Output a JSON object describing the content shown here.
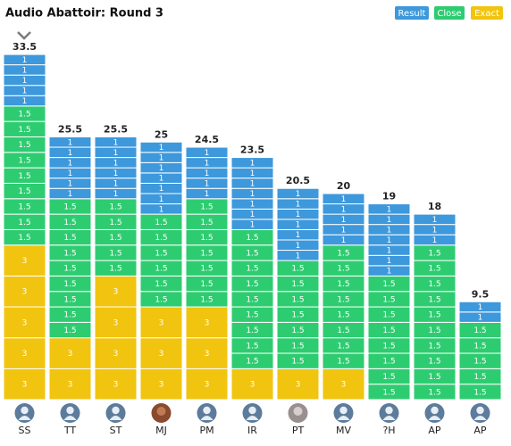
{
  "title": "Audio Abattoir: Round 3",
  "legend": {
    "result": {
      "label": "Result",
      "color": "#3d98dc"
    },
    "close": {
      "label": "Close",
      "color": "#2ecc71"
    },
    "exact": {
      "label": "Exact",
      "color": "#f1c40f"
    }
  },
  "columns": [
    {
      "name": "SS",
      "total": 33.5,
      "result": [
        1,
        1,
        1,
        1,
        1
      ],
      "close": [
        1.5,
        1.5,
        1.5,
        1.5,
        1.5,
        1.5,
        1.5,
        1.5,
        1.5
      ],
      "exact": [
        3,
        3,
        3,
        3,
        3
      ]
    },
    {
      "name": "TT",
      "total": 25.5,
      "result": [
        1,
        1,
        1,
        1,
        1,
        1
      ],
      "close": [
        1.5,
        1.5,
        1.5,
        1.5,
        1.5,
        1.5,
        1.5,
        1.5,
        1.5
      ],
      "exact": [
        3,
        3
      ]
    },
    {
      "name": "ST",
      "total": 25.5,
      "result": [
        1,
        1,
        1,
        1,
        1,
        1
      ],
      "close": [
        1.5,
        1.5,
        1.5,
        1.5,
        1.5
      ],
      "exact": [
        3,
        3,
        3,
        3
      ]
    },
    {
      "name": "MJ",
      "total": 25,
      "result": [
        1,
        1,
        1,
        1,
        1,
        1,
        1
      ],
      "close": [
        1.5,
        1.5,
        1.5,
        1.5,
        1.5,
        1.5
      ],
      "exact": [
        3,
        3,
        3
      ]
    },
    {
      "name": "PM",
      "total": 24.5,
      "result": [
        1,
        1,
        1,
        1,
        1
      ],
      "close": [
        1.5,
        1.5,
        1.5,
        1.5,
        1.5,
        1.5,
        1.5
      ],
      "exact": [
        3,
        3,
        3
      ]
    },
    {
      "name": "IR",
      "total": 23.5,
      "result": [
        1,
        1,
        1,
        1,
        1,
        1,
        1
      ],
      "close": [
        1.5,
        1.5,
        1.5,
        1.5,
        1.5,
        1.5,
        1.5,
        1.5,
        1.5
      ],
      "exact": [
        3
      ]
    },
    {
      "name": "PT",
      "total": 20.5,
      "result": [
        1,
        1,
        1,
        1,
        1,
        1,
        1
      ],
      "close": [
        1.5,
        1.5,
        1.5,
        1.5,
        1.5,
        1.5,
        1.5
      ],
      "exact": [
        3
      ]
    },
    {
      "name": "MV",
      "total": 20,
      "result": [
        1,
        1,
        1,
        1,
        1
      ],
      "close": [
        1.5,
        1.5,
        1.5,
        1.5,
        1.5,
        1.5,
        1.5,
        1.5
      ],
      "exact": [
        3
      ]
    },
    {
      "name": "?H",
      "total": 19,
      "result": [
        1,
        1,
        1,
        1,
        1,
        1,
        1
      ],
      "close": [
        1.5,
        1.5,
        1.5,
        1.5,
        1.5,
        1.5,
        1.5,
        1.5
      ],
      "exact": []
    },
    {
      "name": "AP",
      "total": 18,
      "result": [
        1,
        1,
        1
      ],
      "close": [
        1.5,
        1.5,
        1.5,
        1.5,
        1.5,
        1.5,
        1.5,
        1.5,
        1.5,
        1.5
      ],
      "exact": []
    },
    {
      "name": "AP",
      "total": 9.5,
      "result": [
        1,
        1
      ],
      "close": [
        1.5,
        1.5,
        1.5,
        1.5,
        1.5
      ],
      "exact": []
    }
  ]
}
